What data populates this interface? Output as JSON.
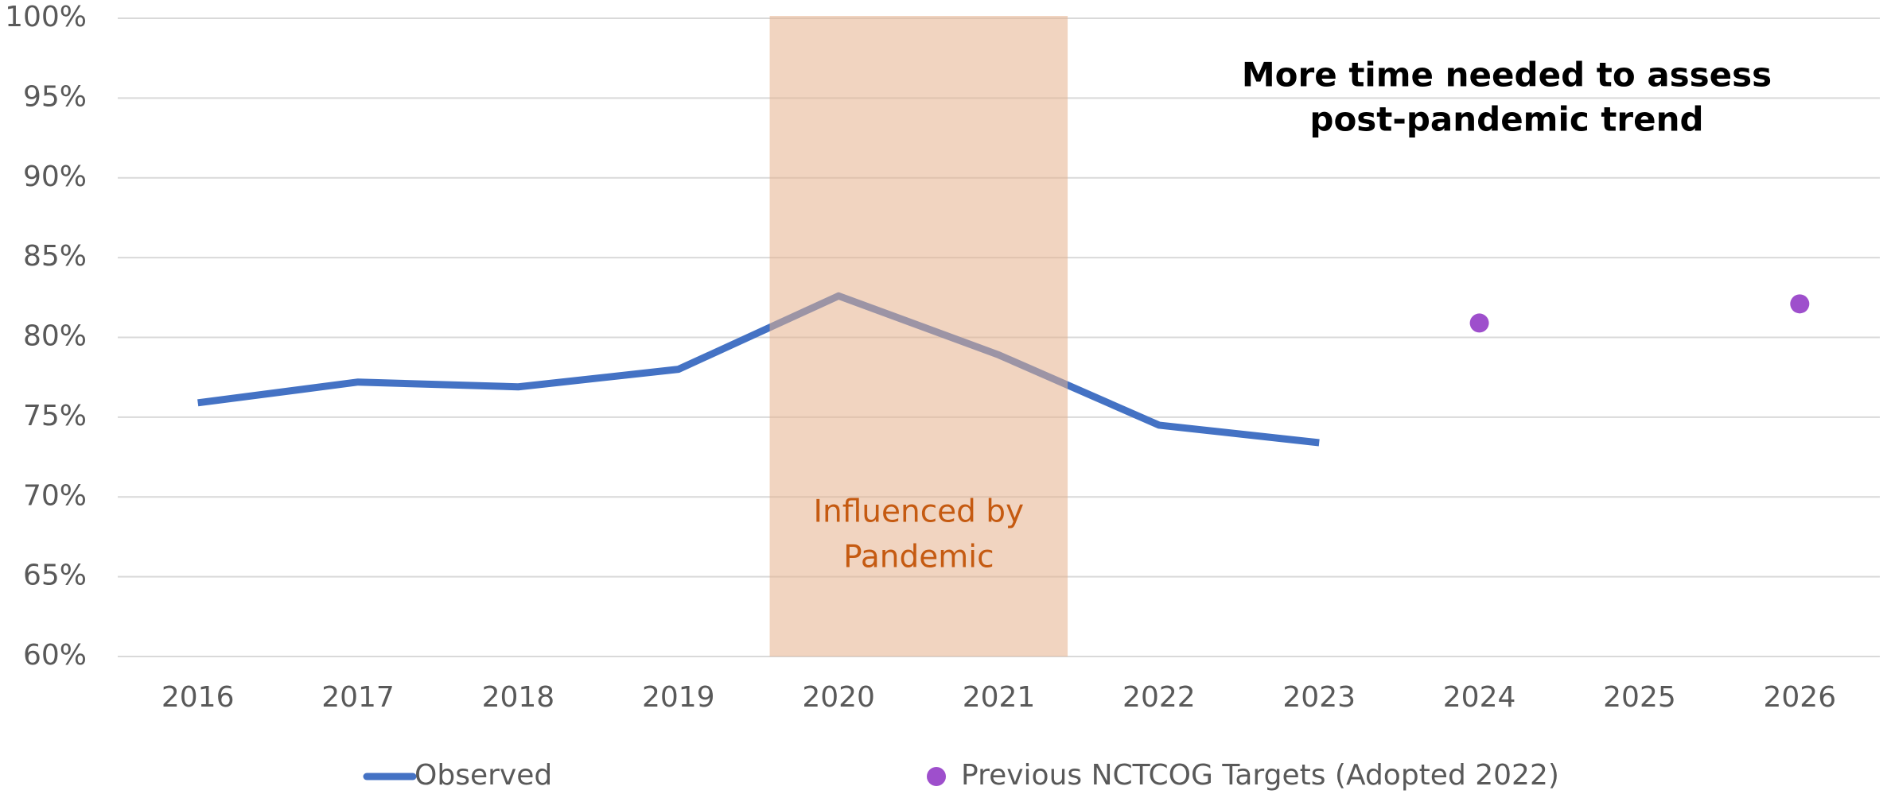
{
  "chart_data": {
    "type": "line",
    "annotations": [
      [
        "More time needed to assess",
        "post-pandemic trend"
      ],
      [
        "Influenced by",
        "Pandemic"
      ]
    ],
    "categories": [
      "2016",
      "2017",
      "2018",
      "2019",
      "2020",
      "2021",
      "2022",
      "2023",
      "2024",
      "2025",
      "2026"
    ],
    "series": [
      {
        "name": "Observed",
        "color": "#4472c4",
        "type": "line",
        "values": [
          75.9,
          77.2,
          76.9,
          78.0,
          82.6,
          78.9,
          74.5,
          73.4,
          null,
          null,
          null
        ]
      },
      {
        "name": "Previous NCTCOG Targets (Adopted 2022)",
        "color": "#9e4fcc",
        "type": "scatter",
        "values": [
          null,
          null,
          null,
          null,
          null,
          null,
          null,
          null,
          80.9,
          null,
          82.1
        ]
      }
    ],
    "ylim": [
      60,
      100
    ],
    "yticks": [
      {
        "value": 60,
        "label": "60%"
      },
      {
        "value": 65,
        "label": "65%"
      },
      {
        "value": 70,
        "label": "70%"
      },
      {
        "value": 75,
        "label": "75%"
      },
      {
        "value": 80,
        "label": "80%"
      },
      {
        "value": 85,
        "label": "85%"
      },
      {
        "value": 90,
        "label": "90%"
      },
      {
        "value": 95,
        "label": "95%"
      },
      {
        "value": 100,
        "label": "100%"
      }
    ],
    "grid": true,
    "legend": "bottom"
  }
}
